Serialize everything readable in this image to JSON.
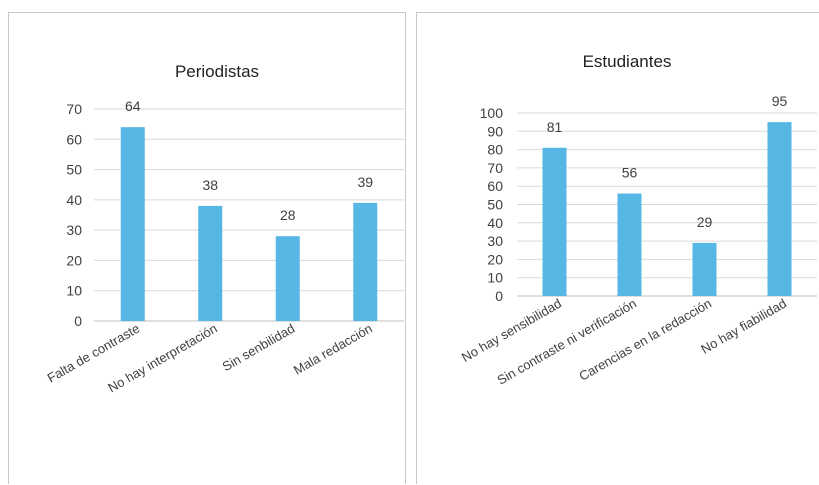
{
  "colors": {
    "bar": "#56b6e4",
    "grid": "#d9d9d9",
    "text": "#404040"
  },
  "chart_data": [
    {
      "type": "bar",
      "title": "Periodistas",
      "categories": [
        "Falta de contraste",
        "No hay interpretación",
        "Sin senbilidad",
        "Mala redacción"
      ],
      "values": [
        64,
        38,
        28,
        39
      ],
      "ylim": [
        0,
        70
      ],
      "yticks": [
        0,
        10,
        20,
        30,
        40,
        50,
        60,
        70
      ],
      "grid": true,
      "legend": "none"
    },
    {
      "type": "bar",
      "title": "Estudiantes",
      "categories": [
        "No hay sensibilidad",
        "Sin  contraste ni verificación",
        "Carencias en la redacción",
        "No hay fiabilidad"
      ],
      "values": [
        81,
        56,
        29,
        95
      ],
      "ylim": [
        0,
        100
      ],
      "yticks": [
        0,
        10,
        20,
        30,
        40,
        50,
        60,
        70,
        80,
        90,
        100
      ],
      "grid": true,
      "legend": "none"
    }
  ]
}
